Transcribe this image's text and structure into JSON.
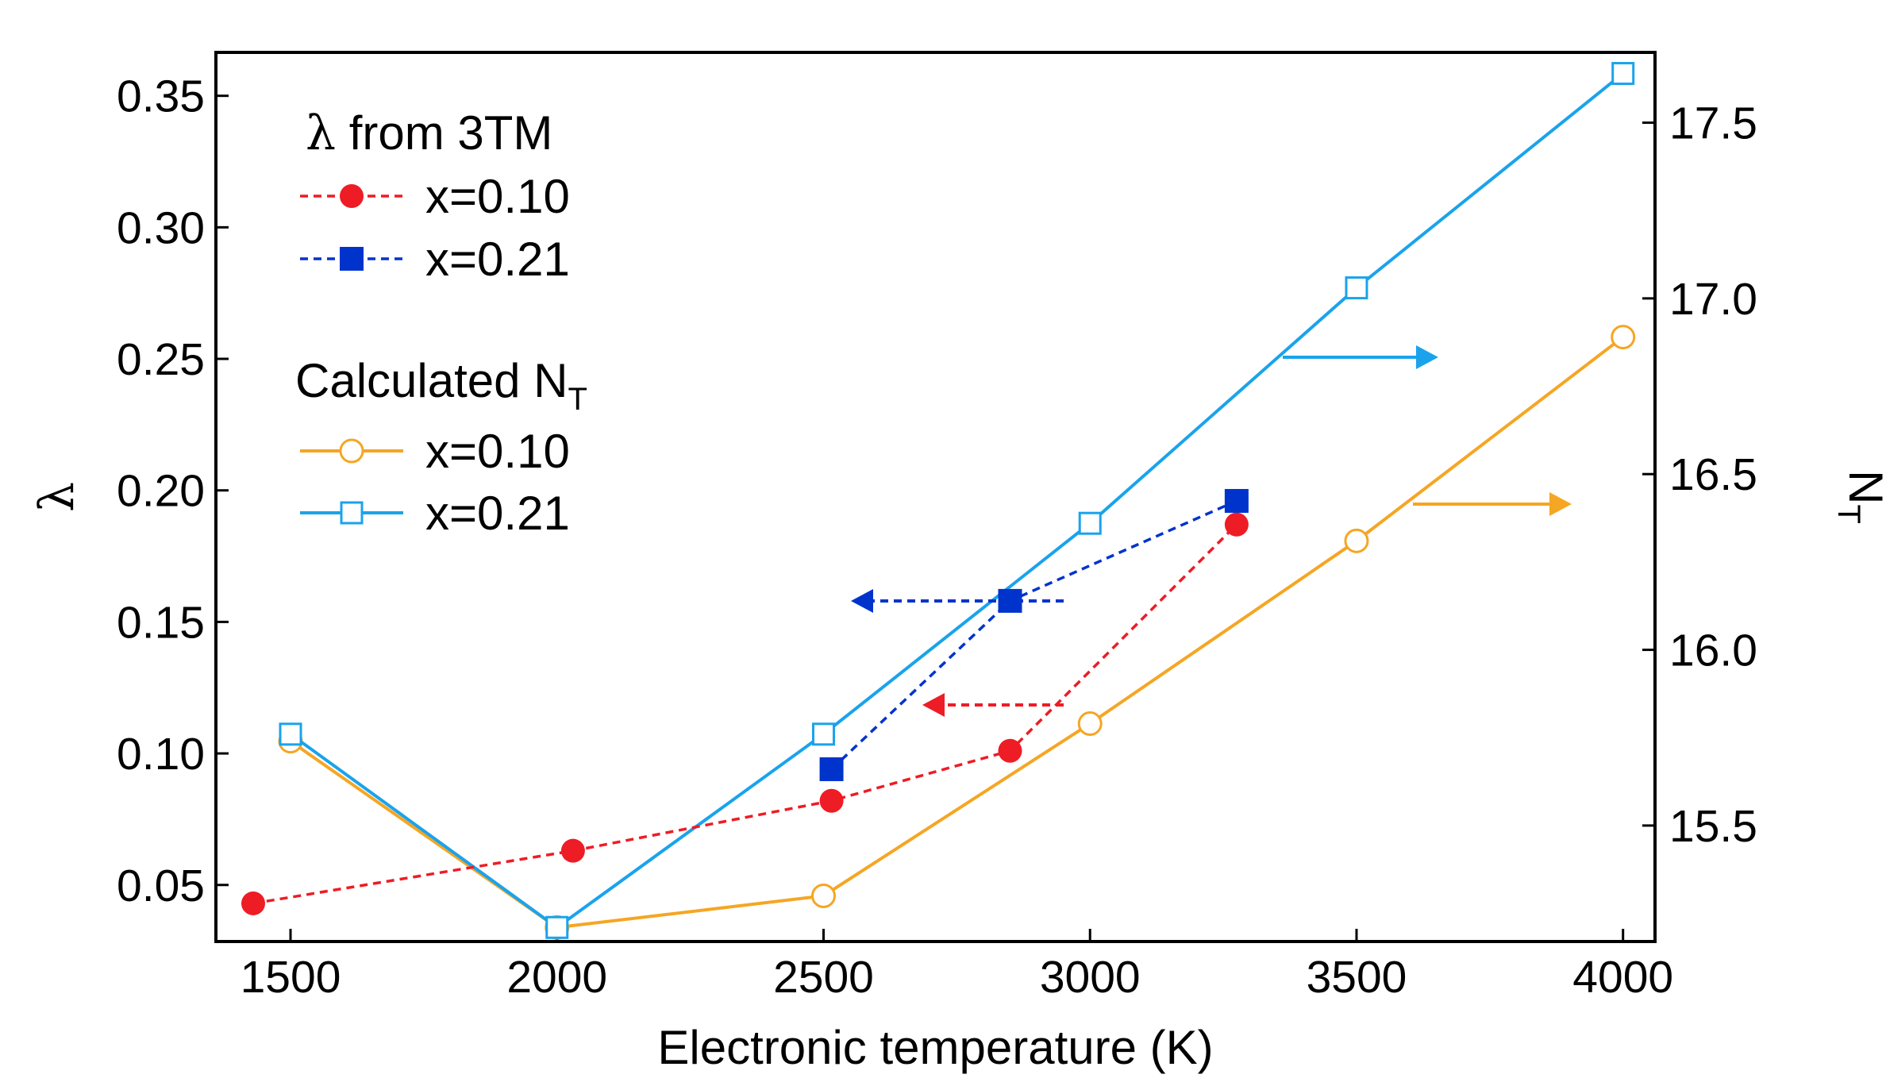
{
  "chart_data": {
    "type": "line",
    "xlabel": "Electronic temperature (K)",
    "ylabel_left": "λ",
    "ylabel_right": "NT",
    "ylabel_right_main": "N",
    "ylabel_right_sub": "T",
    "xlim": [
      1360,
      4060
    ],
    "ylim_left": [
      0.0285,
      0.3665
    ],
    "ylim_right": [
      15.17,
      17.7
    ],
    "x_ticks": [
      1500,
      2000,
      2500,
      3000,
      3500,
      4000
    ],
    "y_left_ticks": [
      0.05,
      0.1,
      0.15,
      0.2,
      0.25,
      0.3,
      0.35
    ],
    "y_left_tick_labels": [
      "0.05",
      "0.10",
      "0.15",
      "0.20",
      "0.25",
      "0.30",
      "0.35"
    ],
    "y_right_ticks": [
      15.5,
      16.0,
      16.5,
      17.0,
      17.5
    ],
    "y_right_tick_labels": [
      "15.5",
      "16.0",
      "16.5",
      "17.0",
      "17.5"
    ],
    "legend": {
      "group1_title_symbol": "λ",
      "group1_title_rest": " from 3TM",
      "group1_title": "λ from 3TM",
      "group2_title_main": "Calculated N",
      "group2_title_sub": "T",
      "group2_title": "Calculated NT"
    },
    "series": [
      {
        "name": "x=0.10",
        "group": "λ from 3TM",
        "axis": "left",
        "color": "#ee1c25",
        "line": "dashed",
        "marker": "filled-circle",
        "x": [
          1430,
          2030,
          2515,
          2850,
          3275
        ],
        "y": [
          0.043,
          0.063,
          0.082,
          0.101,
          0.187
        ]
      },
      {
        "name": "x=0.21",
        "group": "λ from 3TM",
        "axis": "left",
        "color": "#0033cc",
        "line": "dashed",
        "marker": "filled-square",
        "x": [
          2515,
          2850,
          3275
        ],
        "y": [
          0.094,
          0.158,
          0.196
        ]
      },
      {
        "name": "x=0.10",
        "group": "Calculated NT",
        "axis": "right",
        "color": "#f5a623",
        "line": "solid",
        "marker": "open-circle",
        "x": [
          1500,
          2000,
          2500,
          3000,
          3500,
          4000
        ],
        "y": [
          15.74,
          15.21,
          15.3,
          15.79,
          16.31,
          16.89
        ]
      },
      {
        "name": "x=0.21",
        "group": "Calculated NT",
        "axis": "right",
        "color": "#1aa3ec",
        "line": "solid",
        "marker": "open-square",
        "x": [
          1500,
          2000,
          2500,
          3000,
          3500,
          4000
        ],
        "y": [
          15.76,
          15.21,
          15.76,
          16.36,
          17.03,
          17.64
        ]
      }
    ],
    "annotations": [
      {
        "type": "arrow",
        "direction": "left",
        "color": "#0033cc",
        "line": "dashed",
        "series": "x=0.21 λ from 3TM",
        "meaning": "left axis"
      },
      {
        "type": "arrow",
        "direction": "left",
        "color": "#ee1c25",
        "line": "dashed",
        "series": "x=0.10 λ from 3TM",
        "meaning": "left axis"
      },
      {
        "type": "arrow",
        "direction": "right",
        "color": "#1aa3ec",
        "line": "solid",
        "series": "x=0.21 Calculated NT",
        "meaning": "right axis"
      },
      {
        "type": "arrow",
        "direction": "right",
        "color": "#f5a623",
        "line": "solid",
        "series": "x=0.10 Calculated NT",
        "meaning": "right axis"
      }
    ]
  }
}
